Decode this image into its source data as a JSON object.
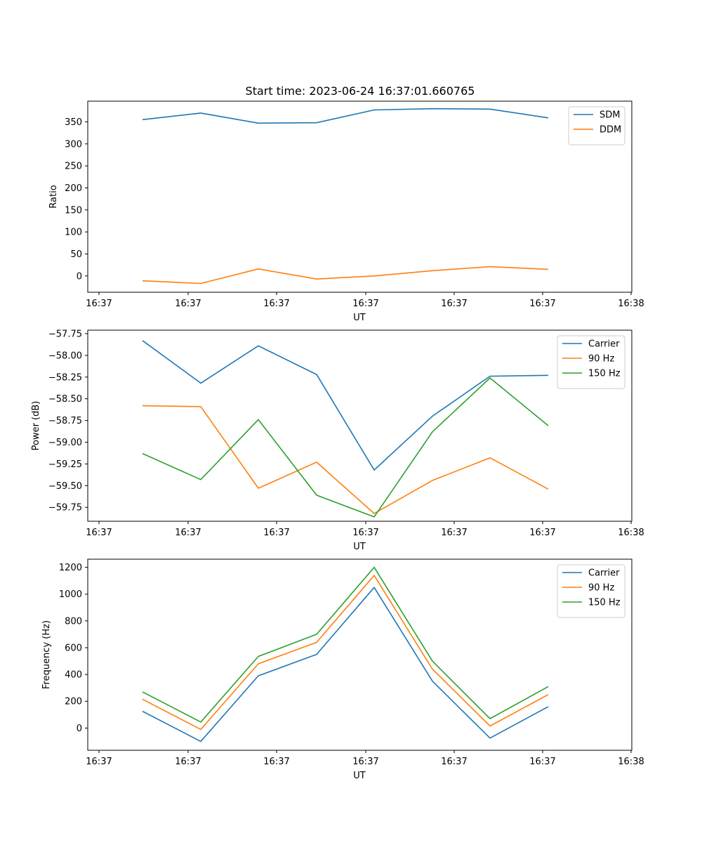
{
  "chart_data": [
    {
      "type": "line",
      "title": "Start time: 2023-06-24 16:37:01.660765",
      "xlabel": "UT",
      "ylabel": "Ratio",
      "x_tick_labels": [
        "16:37",
        "16:37",
        "16:37",
        "16:37",
        "16:37",
        "16:37",
        "16:38"
      ],
      "y_ticks": [
        0,
        50,
        100,
        150,
        200,
        250,
        300,
        350
      ],
      "y_tick_labels": [
        "0",
        "50",
        "100",
        "150",
        "200",
        "250",
        "300",
        "350"
      ],
      "ylim": [
        -37,
        397
      ],
      "legend_position": "upper right",
      "grid": false,
      "series": [
        {
          "name": "SDM",
          "color": "#1f77b4",
          "values": [
            355,
            370,
            347,
            348,
            377,
            380,
            379,
            359
          ]
        },
        {
          "name": "DDM",
          "color": "#ff7f0e",
          "values": [
            -11,
            -17,
            16,
            -7,
            0,
            12,
            21,
            15
          ]
        }
      ]
    },
    {
      "type": "line",
      "title": "",
      "xlabel": "UT",
      "ylabel": "Power (dB)",
      "x_tick_labels": [
        "16:37",
        "16:37",
        "16:37",
        "16:37",
        "16:37",
        "16:37",
        "16:38"
      ],
      "y_ticks": [
        -57.75,
        -58.0,
        -58.25,
        -58.5,
        -58.75,
        -59.0,
        -59.25,
        -59.5,
        -59.75
      ],
      "y_tick_labels": [
        "−57.75",
        "−58.00",
        "−58.25",
        "−58.50",
        "−58.75",
        "−59.00",
        "−59.25",
        "−59.50",
        "−59.75"
      ],
      "ylim": [
        -59.91,
        -57.71
      ],
      "legend_position": "upper right",
      "grid": false,
      "series": [
        {
          "name": "Carrier",
          "color": "#1f77b4",
          "values": [
            -57.83,
            -58.32,
            -57.89,
            -58.22,
            -59.32,
            -58.7,
            -58.24,
            -58.23
          ]
        },
        {
          "name": "90 Hz",
          "color": "#ff7f0e",
          "values": [
            -58.58,
            -58.59,
            -59.53,
            -59.23,
            -59.82,
            -59.44,
            -59.18,
            -59.54
          ]
        },
        {
          "name": "150 Hz",
          "color": "#2ca02c",
          "values": [
            -59.13,
            -59.43,
            -58.74,
            -59.61,
            -59.86,
            -58.88,
            -58.26,
            -58.81
          ]
        }
      ]
    },
    {
      "type": "line",
      "title": "",
      "xlabel": "UT",
      "ylabel": "Frequency (Hz)",
      "x_tick_labels": [
        "16:37",
        "16:37",
        "16:37",
        "16:37",
        "16:37",
        "16:37",
        "16:38"
      ],
      "y_ticks": [
        0,
        200,
        400,
        600,
        800,
        1000,
        1200
      ],
      "y_tick_labels": [
        "0",
        "200",
        "400",
        "600",
        "800",
        "1000",
        "1200"
      ],
      "ylim": [
        -166,
        1261
      ],
      "legend_position": "upper right",
      "grid": false,
      "series": [
        {
          "name": "Carrier",
          "color": "#1f77b4",
          "values": [
            125,
            -100,
            390,
            550,
            1050,
            350,
            -75,
            160
          ]
        },
        {
          "name": "90 Hz",
          "color": "#ff7f0e",
          "values": [
            215,
            -10,
            480,
            640,
            1140,
            440,
            15,
            250
          ]
        },
        {
          "name": "150 Hz",
          "color": "#2ca02c",
          "values": [
            270,
            45,
            535,
            700,
            1200,
            500,
            70,
            310
          ]
        }
      ]
    }
  ]
}
